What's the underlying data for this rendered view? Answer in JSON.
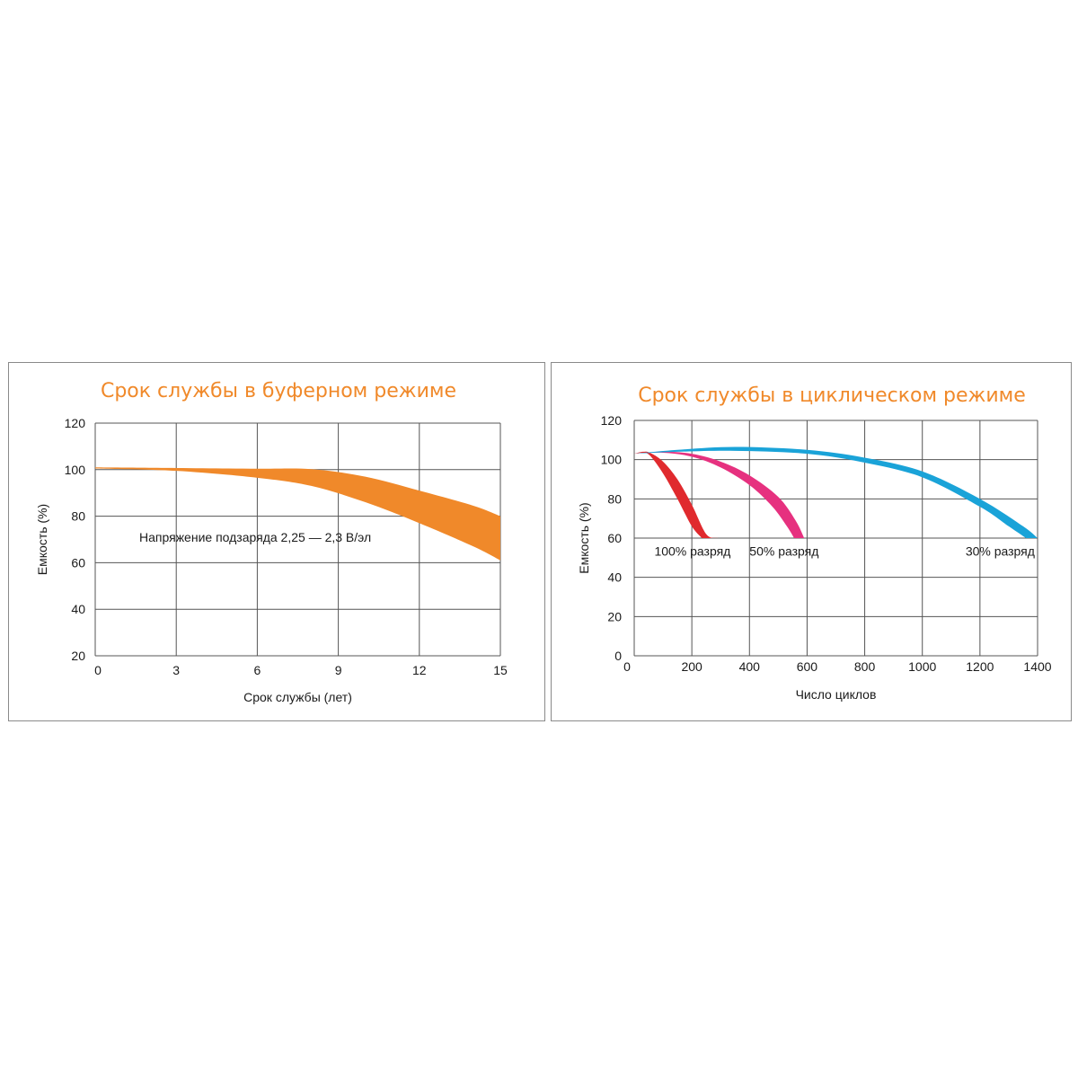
{
  "chart_data": [
    {
      "type": "area",
      "title": "Срок службы в буферном режиме",
      "xlabel": "Срок службы (лет)",
      "ylabel": "Емкость (%)",
      "xlim": [
        0,
        15
      ],
      "ylim": [
        20,
        120
      ],
      "xticks": [
        "0",
        "3",
        "6",
        "9",
        "12",
        "15"
      ],
      "yticks": [
        "20",
        "40",
        "60",
        "80",
        "100",
        "120"
      ],
      "grid": true,
      "annotation": "Напряжение подзаряда 2,25 — 2,3 В/эл",
      "series": [
        {
          "name": "Напряжение подзаряда 2,25 — 2,3 В/эл",
          "color": "#f0892a",
          "upper": [
            [
              0,
              101
            ],
            [
              3,
              100.7
            ],
            [
              6,
              100.4
            ],
            [
              8,
              100.2
            ],
            [
              10,
              97
            ],
            [
              12,
              91
            ],
            [
              14,
              84.5
            ],
            [
              15,
              80
            ]
          ],
          "lower": [
            [
              0,
              100.5
            ],
            [
              3,
              99.5
            ],
            [
              6,
              96.5
            ],
            [
              8,
              93
            ],
            [
              10,
              86
            ],
            [
              12,
              77
            ],
            [
              14,
              67
            ],
            [
              15,
              61
            ]
          ]
        }
      ]
    },
    {
      "type": "area",
      "title": "Срок службы в циклическом режиме",
      "xlabel": "Число циклов",
      "ylabel": "Емкость (%)",
      "xlim": [
        0,
        1400
      ],
      "ylim": [
        0,
        120
      ],
      "xticks": [
        "0",
        "200",
        "400",
        "600",
        "800",
        "1000",
        "1200",
        "1400"
      ],
      "yticks": [
        "0",
        "20",
        "40",
        "60",
        "80",
        "100",
        "120"
      ],
      "grid": true,
      "series": [
        {
          "name": "100% разряд",
          "color": "#e02a2e",
          "upper": [
            [
              0,
              103
            ],
            [
              30,
              104
            ],
            [
              55,
              103.5
            ],
            [
              100,
              99
            ],
            [
              150,
              90
            ],
            [
              200,
              77
            ],
            [
              250,
              62
            ],
            [
              290,
              60
            ]
          ],
          "lower": [
            [
              0,
              103
            ],
            [
              30,
              103.5
            ],
            [
              55,
              102
            ],
            [
              100,
              93
            ],
            [
              150,
              80
            ],
            [
              200,
              66
            ],
            [
              235,
              60
            ]
          ]
        },
        {
          "name": "50% разряд",
          "color": "#e6317f",
          "upper": [
            [
              0,
              103
            ],
            [
              100,
              104
            ],
            [
              200,
              103
            ],
            [
              300,
              99
            ],
            [
              400,
              92
            ],
            [
              500,
              81
            ],
            [
              560,
              69
            ],
            [
              590,
              60
            ]
          ],
          "lower": [
            [
              0,
              103
            ],
            [
              100,
              103.5
            ],
            [
              200,
              101.5
            ],
            [
              300,
              96
            ],
            [
              400,
              87
            ],
            [
              480,
              76
            ],
            [
              530,
              66
            ],
            [
              555,
              60
            ]
          ]
        },
        {
          "name": "30% разряд",
          "color": "#1aa3d8",
          "upper": [
            [
              0,
              103
            ],
            [
              150,
              105
            ],
            [
              350,
              106.5
            ],
            [
              600,
              105
            ],
            [
              800,
              101
            ],
            [
              1000,
              94
            ],
            [
              1200,
              80
            ],
            [
              1350,
              66
            ],
            [
              1400,
              60
            ]
          ],
          "lower": [
            [
              0,
              103
            ],
            [
              150,
              104
            ],
            [
              350,
              104.5
            ],
            [
              600,
              103
            ],
            [
              800,
              98.5
            ],
            [
              1000,
              91
            ],
            [
              1200,
              76
            ],
            [
              1300,
              66
            ],
            [
              1360,
              60
            ]
          ]
        }
      ],
      "labels": [
        {
          "text": "100% разряд",
          "x": 70,
          "y": 51
        },
        {
          "text": "50% разряд",
          "x": 400,
          "y": 51
        },
        {
          "text": "30% разряд",
          "x": 1150,
          "y": 51
        }
      ]
    }
  ]
}
